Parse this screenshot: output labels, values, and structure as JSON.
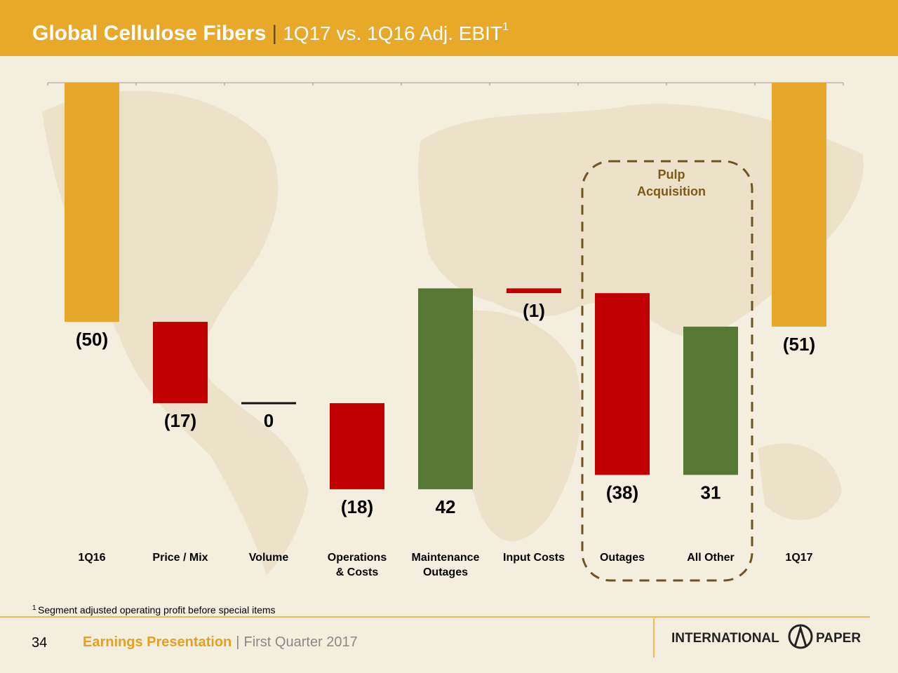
{
  "header": {
    "title": "Global Cellulose Fibers",
    "separator": "|",
    "subtitle": "1Q17 vs. 1Q16 Adj. EBIT",
    "superscript": "1"
  },
  "chart_data": {
    "type": "waterfall",
    "categories": [
      "1Q16",
      "Price / Mix",
      "Volume",
      "Operations\n& Costs",
      "Maintenance\nOutages",
      "Input Costs",
      "Outages",
      "All Other",
      "1Q17"
    ],
    "values": [
      -50,
      -17,
      0,
      -18,
      42,
      -1,
      -38,
      31,
      -51
    ],
    "value_labels": [
      "(50)",
      "(17)",
      "0",
      "(18)",
      "42",
      "(1)",
      "(38)",
      "31",
      "(51)"
    ],
    "measure": [
      "total",
      "relative",
      "relative",
      "relative",
      "relative",
      "relative",
      "relative",
      "relative",
      "total"
    ],
    "colors": {
      "total": "#e6a72a",
      "decrease": "#c00000",
      "increase": "#567834",
      "zero": "#111111"
    },
    "ylim": [
      -90,
      0
    ],
    "annotation": [
      "Pulp",
      "Acquisition"
    ]
  },
  "footnote": {
    "marker": "1",
    "text": "Segment adjusted operating profit before special items"
  },
  "footer": {
    "page": "34",
    "title": "Earnings Presentation",
    "separator": "|",
    "subtitle": "First Quarter 2017",
    "logo_left": "INTERNATIONAL",
    "logo_right": "PAPER"
  }
}
